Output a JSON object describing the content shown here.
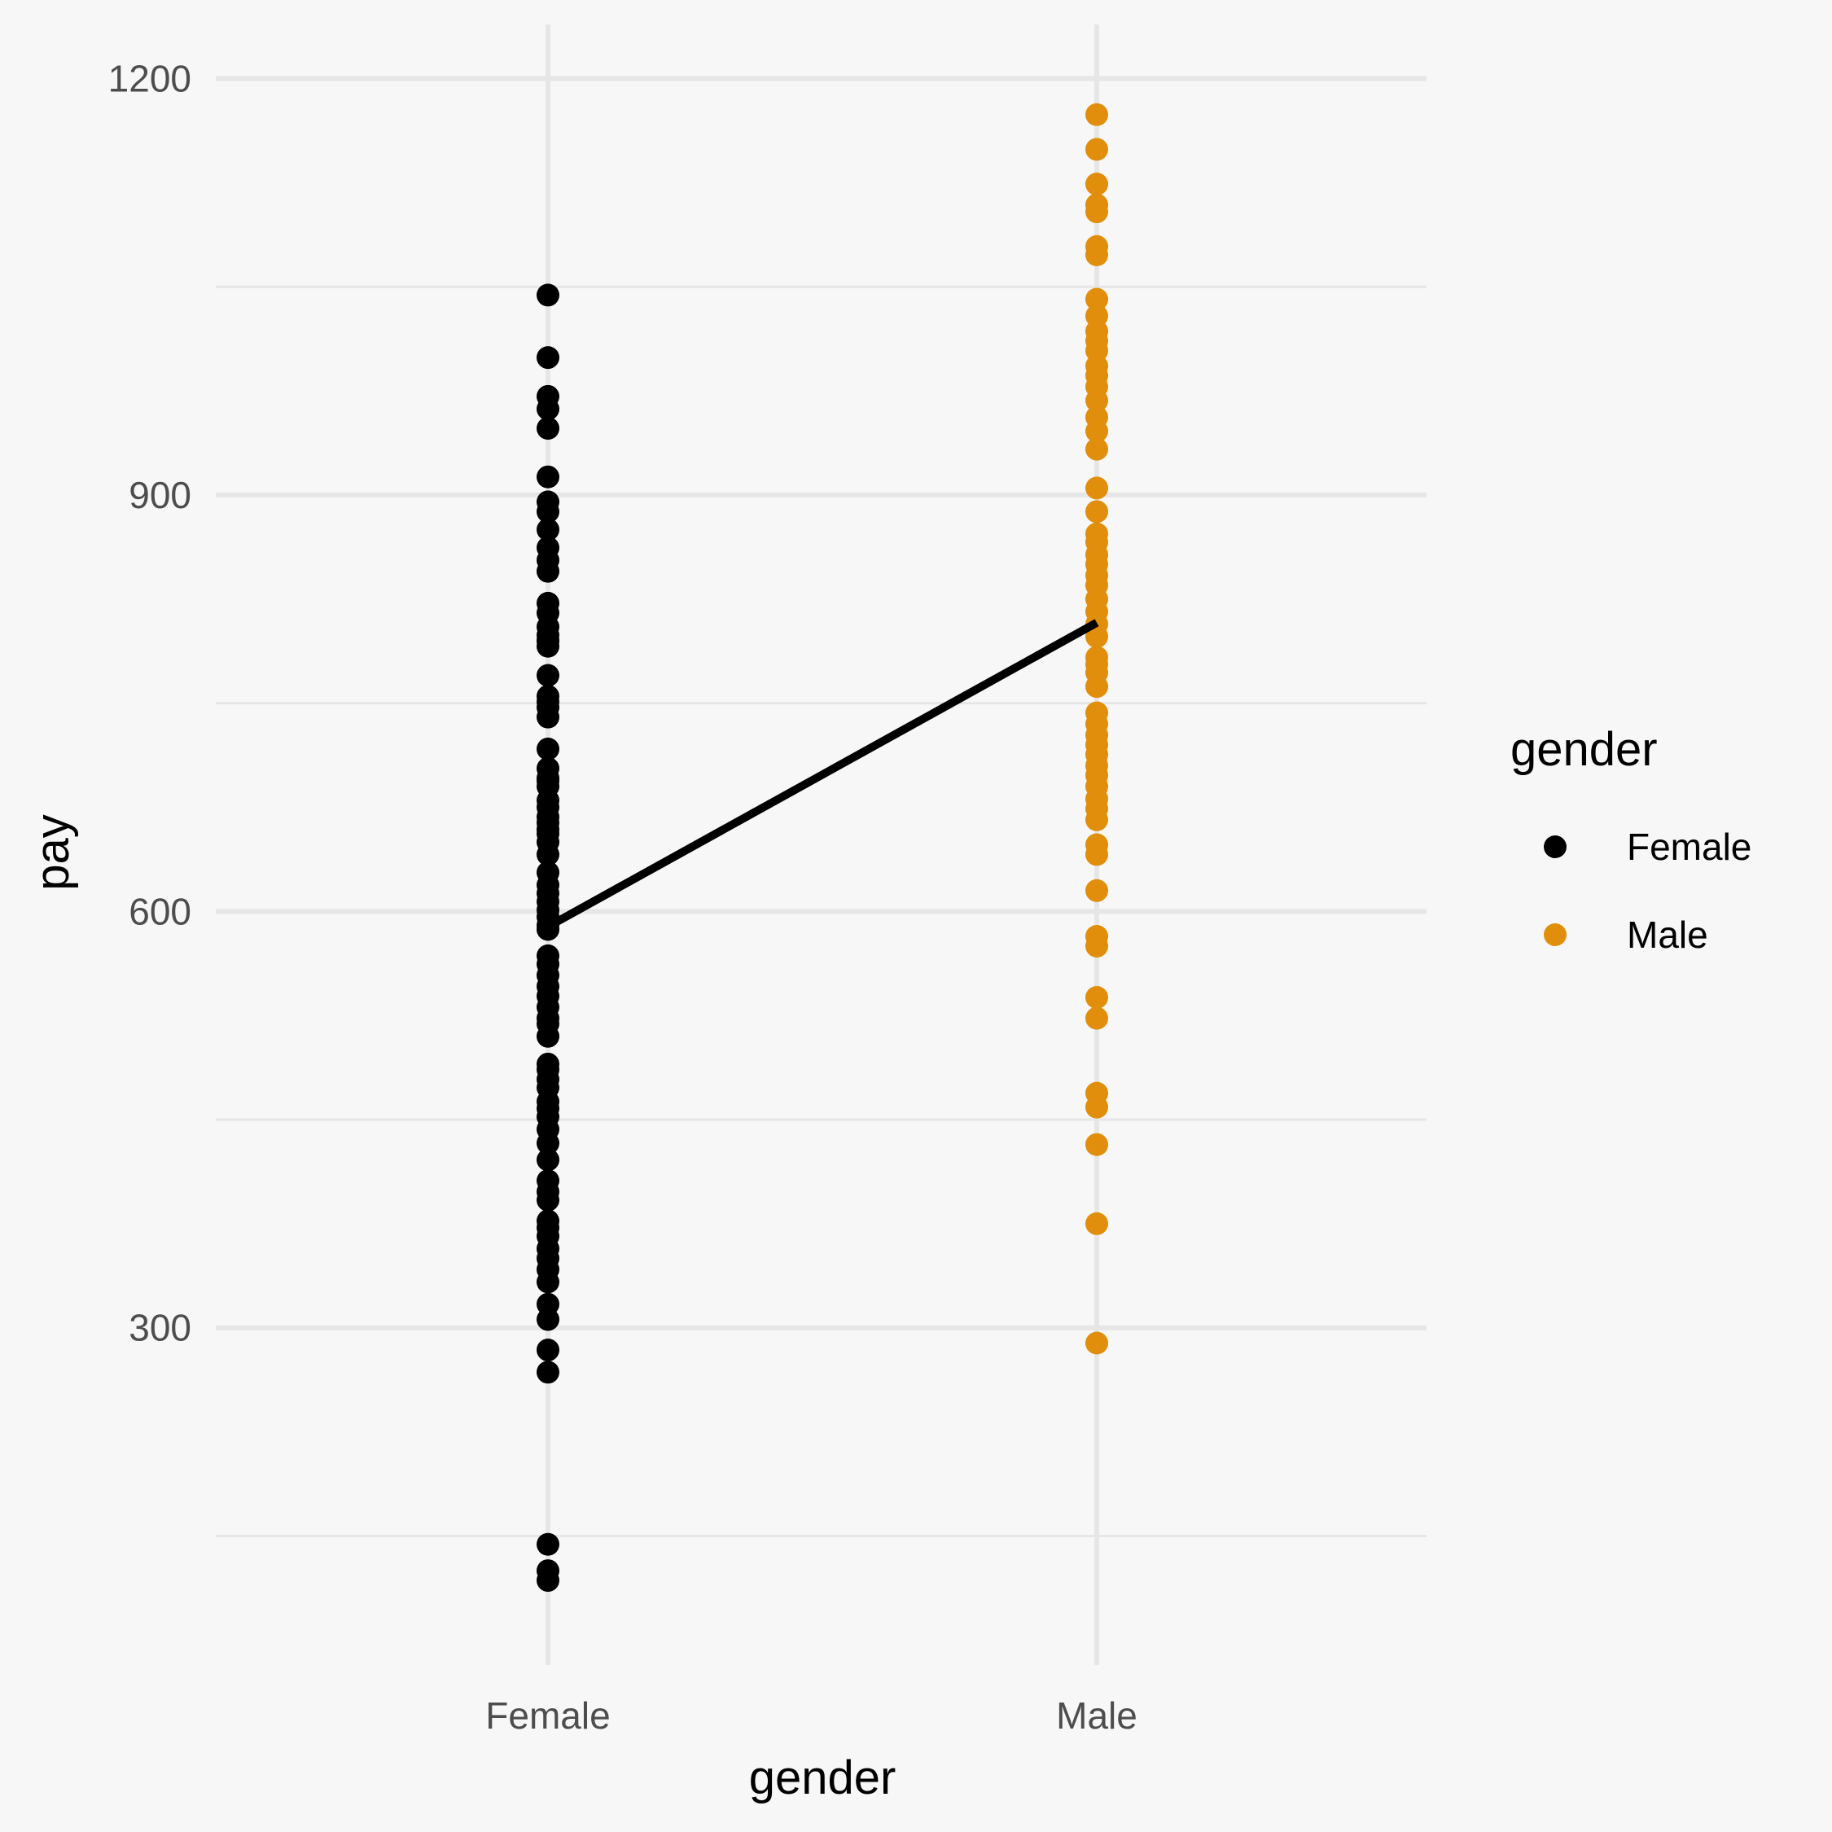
{
  "chart_data": {
    "type": "scatter",
    "xlabel": "gender",
    "ylabel": "pay",
    "categories": [
      "Female",
      "Male"
    ],
    "ylim": [
      57,
      1239
    ],
    "y_ticks": [
      300,
      600,
      900,
      1200
    ],
    "y_minor_ticks": [
      150,
      450,
      750,
      1050
    ],
    "grid": true,
    "legend": {
      "title": "gender",
      "placement": "right",
      "entries": [
        {
          "label": "Female",
          "color": "#000000"
        },
        {
          "label": "Male",
          "color": "#e08e0b"
        }
      ]
    },
    "series": [
      {
        "name": "Female",
        "color": "#000000",
        "x": "Female",
        "y": [
          1044,
          999,
          971,
          962,
          948,
          913,
          895,
          888,
          875,
          862,
          853,
          845,
          822,
          815,
          805,
          799,
          795,
          795,
          791,
          770,
          755,
          751,
          747,
          740,
          717,
          703,
          696,
          694,
          690,
          680,
          675,
          668,
          664,
          659,
          656,
          650,
          641,
          628,
          619,
          613,
          607,
          601,
          596,
          590,
          587,
          568,
          562,
          554,
          546,
          539,
          531,
          523,
          519,
          510,
          490,
          486,
          479,
          473,
          463,
          458,
          452,
          443,
          433,
          421,
          406,
          398,
          392,
          377,
          372,
          366,
          357,
          350,
          342,
          333,
          317,
          306,
          284,
          268,
          144,
          125,
          118
        ]
      },
      {
        "name": "Male",
        "color": "#e08e0b",
        "x": "Male",
        "y": [
          1174,
          1149,
          1124,
          1109,
          1104,
          1079,
          1073,
          1041,
          1029,
          1018,
          1011,
          1004,
          993,
          986,
          978,
          968,
          956,
          946,
          933,
          905,
          888,
          872,
          866,
          857,
          850,
          842,
          835,
          825,
          816,
          807,
          798,
          783,
          778,
          772,
          762,
          743,
          735,
          727,
          720,
          713,
          705,
          698,
          690,
          681,
          674,
          666,
          648,
          641,
          615,
          582,
          575,
          538,
          523,
          469,
          459,
          432,
          375,
          289
        ]
      },
      {
        "name": "",
        "type": "line",
        "color": "#000000",
        "x": [
          "Female",
          "Male"
        ],
        "y": [
          589,
          808
        ]
      }
    ]
  }
}
